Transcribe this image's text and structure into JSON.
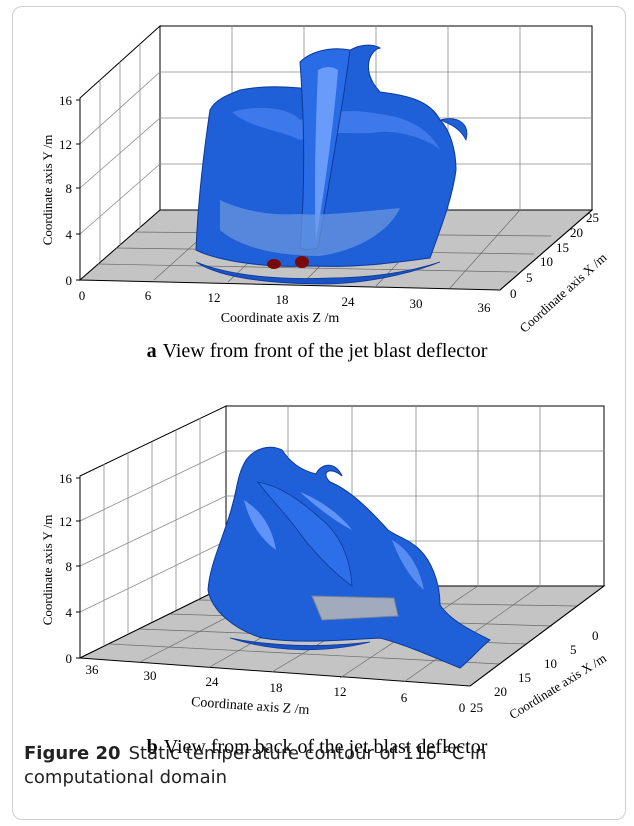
{
  "panel_a": {
    "label": "a",
    "caption": "View from front of the jet blast deflector",
    "y_axis_title": "Coordinate axis  Y /m",
    "z_axis_title": "Coordinate axis  Z /m",
    "x_axis_title": "Coordinate axis  X /m",
    "y_ticks": [
      "0",
      "4",
      "8",
      "12",
      "16"
    ],
    "z_ticks": [
      "0",
      "6",
      "12",
      "18",
      "24",
      "30",
      "36"
    ],
    "x_ticks": [
      "0",
      "5",
      "10",
      "15",
      "20",
      "25"
    ]
  },
  "panel_b": {
    "label": "b",
    "caption": "View from back of the jet blast deflector",
    "y_axis_title": "Coordinate axis  Y /m",
    "z_axis_title": "Coordinate axis  Z /m",
    "x_axis_title": "Coordinate axis  X /m",
    "y_ticks": [
      "0",
      "4",
      "8",
      "12",
      "16"
    ],
    "z_ticks": [
      "36",
      "30",
      "24",
      "18",
      "12",
      "6",
      "0"
    ],
    "x_ticks": [
      "25",
      "20",
      "15",
      "10",
      "5",
      "0"
    ]
  },
  "figure_caption": {
    "label": "Figure 20",
    "text": "Static temperature contour of 116 °C in computational domain"
  },
  "colors": {
    "surface": "#1f5fd8",
    "surface_dark": "#0a3a9a",
    "highlight": "#6fa0ff",
    "hot_spot": "#7a0a0a",
    "grid_line": "#888888",
    "floor": "#bdbdbd"
  }
}
